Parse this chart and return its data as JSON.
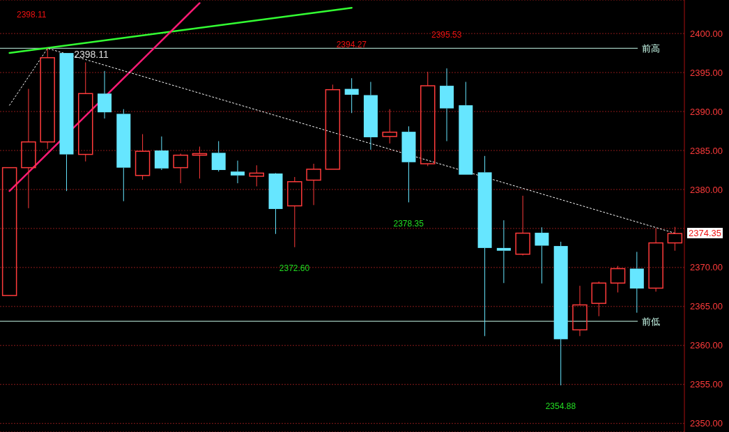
{
  "chart_data": {
    "type": "candlestick",
    "categories": [
      null,
      null,
      null,
      null,
      null,
      null,
      null,
      null,
      null,
      null,
      null,
      null,
      null,
      null,
      null,
      null,
      null,
      null,
      null,
      null,
      null,
      null,
      null,
      null,
      null,
      null,
      null,
      null,
      null,
      null,
      null,
      null,
      null,
      null,
      null,
      null
    ],
    "ohlc": [
      [
        2366.4,
        2382.8,
        2366.4,
        2382.8
      ],
      [
        2382.8,
        2392.9,
        2377.6,
        2386.1
      ],
      [
        2386.1,
        2398.11,
        2385.2,
        2396.9
      ],
      [
        2397.5,
        2397.5,
        2379.8,
        2384.5
      ],
      [
        2384.5,
        2396.3,
        2383.6,
        2392.3
      ],
      [
        2392.3,
        2395.2,
        2389.1,
        2389.9
      ],
      [
        2389.7,
        2390.3,
        2378.5,
        2382.8
      ],
      [
        2381.8,
        2387.1,
        2381.25,
        2384.9
      ],
      [
        2385.0,
        2386.8,
        2382.5,
        2382.7
      ],
      [
        2382.8,
        2384.6,
        2380.8,
        2384.4
      ],
      [
        2384.4,
        2385.5,
        2381.4,
        2384.6
      ],
      [
        2384.7,
        2386.2,
        2382.3,
        2382.5
      ],
      [
        2382.3,
        2383.7,
        2380.8,
        2381.8
      ],
      [
        2381.7,
        2383.1,
        2380.4,
        2382.1
      ],
      [
        2382.05,
        2382.1,
        2374.3,
        2377.5
      ],
      [
        2377.9,
        2381.6,
        2372.6,
        2381.0
      ],
      [
        2381.2,
        2383.3,
        2378.0,
        2382.6
      ],
      [
        2382.6,
        2393.45,
        2382.6,
        2392.8
      ],
      [
        2392.9,
        2394.27,
        2389.8,
        2392.15
      ],
      [
        2392.1,
        2393.8,
        2385.1,
        2386.7
      ],
      [
        2386.8,
        2390.3,
        2385.9,
        2387.35
      ],
      [
        2387.4,
        2388.1,
        2378.35,
        2383.5
      ],
      [
        2383.3,
        2395.1,
        2383.0,
        2393.3
      ],
      [
        2393.3,
        2395.53,
        2386.2,
        2390.4
      ],
      [
        2390.8,
        2393.8,
        2381.9,
        2381.9
      ],
      [
        2382.2,
        2384.3,
        2361.2,
        2372.5
      ],
      [
        2372.5,
        2376.05,
        2368.0,
        2372.15
      ],
      [
        2371.7,
        2379.2,
        2371.55,
        2374.4
      ],
      [
        2374.45,
        2375.15,
        2367.95,
        2372.8
      ],
      [
        2372.75,
        2373.3,
        2354.88,
        2360.8
      ],
      [
        2362.0,
        2367.65,
        2361.2,
        2365.2
      ],
      [
        2365.4,
        2368.2,
        2363.75,
        2368.0
      ],
      [
        2368.0,
        2370.2,
        2366.8,
        2369.85
      ],
      [
        2369.85,
        2372.0,
        2364.2,
        2367.3
      ],
      [
        2367.35,
        2375.0,
        2366.9,
        2373.15
      ],
      [
        2373.15,
        2375.2,
        2372.15,
        2374.35
      ]
    ],
    "colors": [
      "#ff3b3b",
      "#ff3b3b",
      "#ff3b3b",
      "#66e6ff",
      "#ff3b3b",
      "#66e6ff",
      "#66e6ff",
      "#ff3b3b",
      "#66e6ff",
      "#ff3b3b",
      "#ff3b3b",
      "#66e6ff",
      "#66e6ff",
      "#ff3b3b",
      "#66e6ff",
      "#ff3b3b",
      "#ff3b3b",
      "#ff3b3b",
      "#66e6ff",
      "#66e6ff",
      "#ff3b3b",
      "#66e6ff",
      "#ff3b3b",
      "#66e6ff",
      "#66e6ff",
      "#66e6ff",
      "#66e6ff",
      "#ff3b3b",
      "#66e6ff",
      "#66e6ff",
      "#ff3b3b",
      "#ff3b3b",
      "#ff3b3b",
      "#66e6ff",
      "#ff3b3b",
      "#ff3b3b"
    ],
    "series": [
      {
        "type": "line",
        "color": "#33ff33",
        "values": [
          2397.5,
          null,
          null,
          null,
          null,
          null,
          null,
          null,
          null,
          null,
          null,
          null,
          null,
          null,
          null,
          null,
          null,
          null,
          2403.3,
          null,
          null,
          null,
          null,
          null,
          null,
          null,
          null,
          null,
          null,
          null,
          null,
          null,
          null,
          null,
          null,
          null
        ]
      },
      {
        "type": "line",
        "color": "#ff1a75",
        "values": [
          2379.8,
          null,
          null,
          null,
          null,
          null,
          null,
          null,
          null,
          null,
          2403.9,
          null,
          null,
          null,
          null,
          null,
          null,
          null,
          null,
          null,
          null,
          null,
          null,
          null,
          null,
          null,
          null,
          null,
          null,
          null,
          null,
          null,
          null,
          null,
          null,
          null
        ]
      },
      {
        "type": "line",
        "color": "#ffffff",
        "line_style": "dotted",
        "values": [
          2390.8,
          null,
          2398.1,
          null,
          null,
          null,
          null,
          null,
          null,
          null,
          null,
          null,
          null,
          null,
          null,
          null,
          null,
          null,
          null,
          null,
          null,
          null,
          null,
          null,
          null,
          null,
          null,
          null,
          null,
          null,
          null,
          null,
          null,
          null,
          null,
          2374.4
        ]
      }
    ],
    "ylim": [
      2348.9,
      2404.3
    ],
    "yticks": [
      {
        "value": 2350,
        "label": "2350.00"
      },
      {
        "value": 2355,
        "label": "2355.00"
      },
      {
        "value": 2360,
        "label": "2360.00"
      },
      {
        "value": 2365,
        "label": "2365.00"
      },
      {
        "value": 2370,
        "label": "2370.00"
      },
      {
        "value": 2375,
        "label": null
      },
      {
        "value": 2380,
        "label": "2380.00"
      },
      {
        "value": 2385,
        "label": "2385.00"
      },
      {
        "value": 2390,
        "label": "2390.00"
      },
      {
        "value": 2395,
        "label": "2395.00"
      },
      {
        "value": 2400,
        "label": "2400.00"
      }
    ],
    "grid": "y",
    "ref_lines": [
      {
        "axis": "y",
        "value": 2398.11,
        "label": "前高",
        "color": "#ccffee"
      },
      {
        "axis": "y",
        "value": 2363.1,
        "label": "前低",
        "color": "#ccffee"
      }
    ],
    "annotations": [
      "2398.11",
      "2398.11",
      "2394.27",
      "2395.53",
      "2372.60",
      "2378.35",
      "2354.88",
      "2374.35"
    ]
  }
}
